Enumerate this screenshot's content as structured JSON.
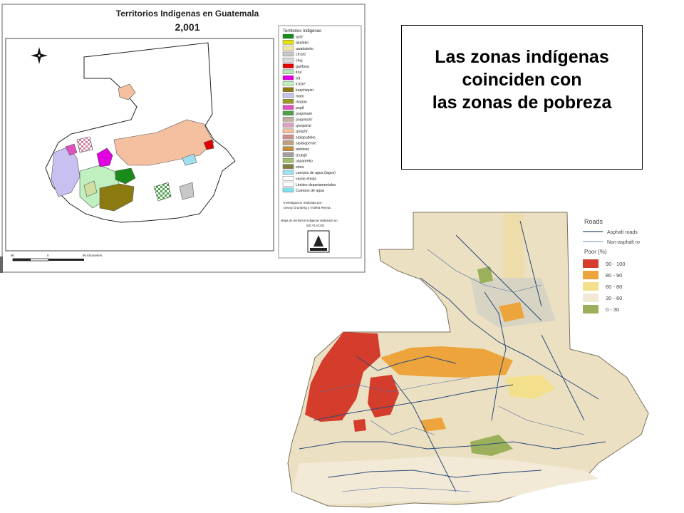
{
  "slide": {
    "text_lines": [
      "Las zonas indígenas",
      "coinciden con",
      "las zonas de pobreza"
    ]
  },
  "map_indigenous": {
    "title_line1": "Territorios Indigenas en Guatemala",
    "title_line2": "2,001",
    "legend_title": "Territorios Indigenas",
    "legend_items": [
      {
        "label": "achi'",
        "color": "#1a8a1a"
      },
      {
        "label": "akateko",
        "color": "#e8e000"
      },
      {
        "label": "awakateko",
        "color": "#f0e8a0"
      },
      {
        "label": "ch'orti'",
        "color": "#c8c8c8"
      },
      {
        "label": "chuj",
        "color": "#d8d8d8"
      },
      {
        "label": "garifuna",
        "color": "#e00000"
      },
      {
        "label": "itza'",
        "color": "#b8e8b8"
      },
      {
        "label": "ixil",
        "color": "#e000e0"
      },
      {
        "label": "k'iche'",
        "color": "#c0f0c0"
      },
      {
        "label": "kaqchiquel",
        "color": "#8a7a10"
      },
      {
        "label": "mam",
        "color": "#c8c0f0"
      },
      {
        "label": "mopan",
        "color": "#9a9a20"
      },
      {
        "label": "popti'",
        "color": "#e050c0"
      },
      {
        "label": "poqomam",
        "color": "#50a050"
      },
      {
        "label": "poqomchi'",
        "color": "#c0b0a0"
      },
      {
        "label": "q'anjob'al",
        "color": "#e0a0c0"
      },
      {
        "label": "q'eqchi'",
        "color": "#f5c0a0"
      },
      {
        "label": "sakapulteko",
        "color": "#d09090"
      },
      {
        "label": "sipakapense",
        "color": "#c0a080"
      },
      {
        "label": "tektiteko",
        "color": "#c09040"
      },
      {
        "label": "tz'utujil",
        "color": "#a0a0a0"
      },
      {
        "label": "uspanteko",
        "color": "#a0c070"
      },
      {
        "label": "etnia",
        "color": "#808040"
      },
      {
        "label": "cuerpos de agua (lagos)",
        "color": "#a0e0f0"
      },
      {
        "label": "varias etnias",
        "color": "#ffffff"
      },
      {
        "label": "Limites departamentales",
        "color": "#ffffff"
      },
      {
        "label": "Cuerpos de agua",
        "color": "#80e0f0"
      }
    ],
    "credit_line1": "Investigacion realizada por:",
    "credit_line2": "Georg Grunberg y Violeta Reyna.",
    "credit_line3": "Mapa de territorios indigenas elaborado en",
    "credit_line4": "SIG FLACSO",
    "scale_left": "90",
    "scale_mid": "0",
    "scale_right": "90 Kilometers"
  },
  "map_poverty": {
    "roads_title": "Roads",
    "road_asphalt": "Asphalt roads",
    "road_nonasphalt": "Non-asphalt ro",
    "poor_title": "Poor (%)",
    "poor_classes": [
      {
        "label": "90 - 100",
        "color": "#d43c2c"
      },
      {
        "label": "80 - 90",
        "color": "#eea43c"
      },
      {
        "label": "60 - 80",
        "color": "#f4e08c"
      },
      {
        "label": "30 - 60",
        "color": "#f2ead6"
      },
      {
        "label": "0 - 30",
        "color": "#9cb05c"
      }
    ]
  }
}
